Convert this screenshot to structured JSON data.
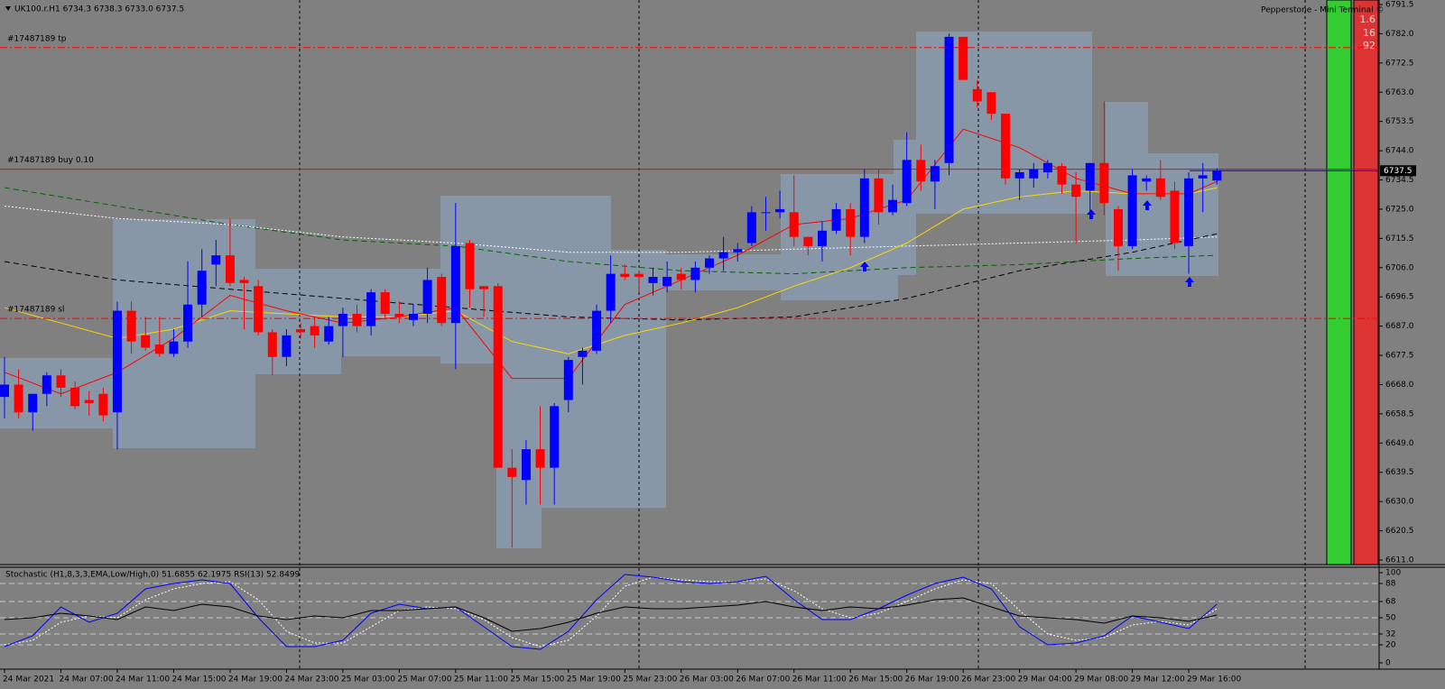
{
  "chart_data": [
    {
      "type": "candlestick",
      "title": "UK100.r.H1  6734.3 6738.3 6733.0 6737.5",
      "annotation": "Pepperstone - Mini Terminal ©",
      "counters": [
        "1.6",
        "16",
        "92"
      ],
      "categories": [
        "24 Mar 2021",
        null,
        null,
        null,
        "24 Mar 07:00",
        null,
        null,
        null,
        "24 Mar 11:00",
        null,
        null,
        null,
        "24 Mar 15:00",
        null,
        null,
        null,
        "24 Mar 19:00",
        null,
        null,
        null,
        "24 Mar 23:00",
        null,
        null,
        null,
        "25 Mar 03:00",
        null,
        null,
        null,
        "25 Mar 07:00",
        null,
        null,
        null,
        "25 Mar 11:00",
        null,
        null,
        null,
        "25 Mar 15:00",
        null,
        null,
        null,
        "25 Mar 19:00",
        null,
        null,
        null,
        "25 Mar 23:00",
        null,
        null,
        null,
        "26 Mar 03:00",
        null,
        null,
        null,
        "26 Mar 07:00",
        null,
        null,
        null,
        "26 Mar 11:00",
        null,
        null,
        null,
        "26 Mar 15:00",
        null,
        null,
        null,
        "26 Mar 19:00",
        null,
        null,
        null,
        "26 Mar 23:00",
        null,
        null,
        null,
        "29 Mar 04:00",
        null,
        null,
        null,
        "29 Mar 08:00",
        null,
        null,
        null,
        "29 Mar 12:00",
        null,
        null,
        null,
        "29 Mar 16:00",
        null,
        null
      ],
      "open": [
        6664,
        6668,
        6659,
        6665,
        6671,
        6667,
        6663,
        6665,
        6659,
        6692,
        6684,
        6681,
        6678,
        6682,
        6694,
        6707,
        6710,
        6702,
        6700,
        6685,
        6677,
        6686,
        6687,
        6682,
        6687,
        6691,
        6687,
        6698,
        6691,
        6689,
        6691,
        6703,
        6688,
        6714,
        6700,
        6700,
        6641,
        6637,
        6647,
        6641,
        6663,
        6677,
        6679,
        6692,
        6704,
        6704,
        6701,
        6700,
        6704,
        6702,
        6706,
        6709,
        6711,
        6714,
        6724,
        6724,
        6724,
        6716,
        6713,
        6718,
        6725,
        6716,
        6735,
        6724,
        6727,
        6741,
        6734,
        6740,
        6781,
        6764,
        6763,
        6756,
        6735,
        6735,
        6737,
        6739,
        6733,
        6731,
        6740,
        6725,
        6713,
        6734,
        6735,
        6731,
        6713,
        6735,
        6734.3
      ],
      "high": [
        6677,
        6673,
        6665,
        6672,
        6673,
        6669,
        6666,
        6667,
        6695,
        6695,
        6690,
        6690,
        6686,
        6708,
        6712,
        6715,
        6722,
        6703,
        6702,
        6686,
        6686,
        6688,
        6690,
        6690,
        6693,
        6694,
        6699,
        6699,
        6695,
        6694,
        6706,
        6704,
        6727,
        6715,
        6700,
        6701,
        6647,
        6650,
        6661,
        6662,
        6677,
        6680,
        6694,
        6710,
        6707,
        6705,
        6706,
        6708,
        6706,
        6708,
        6710,
        6716,
        6714,
        6726,
        6729,
        6731,
        6736,
        6716,
        6721,
        6727,
        6727,
        6738,
        6738,
        6733,
        6750,
        6746,
        6741,
        6782,
        6781,
        6767,
        6763,
        6756,
        6738,
        6740,
        6741,
        6740,
        6737,
        6740,
        6760,
        6726,
        6738,
        6736,
        6741,
        6734,
        6737,
        6740,
        6738.3
      ],
      "low": [
        6657,
        6657,
        6653,
        6661,
        6664,
        6660,
        6658,
        6656,
        6647,
        6678,
        6679,
        6677,
        6677,
        6680,
        6690,
        6700,
        6700,
        6686,
        6684,
        6671,
        6674,
        6683,
        6680,
        6681,
        6677,
        6685,
        6684,
        6689,
        6688,
        6687,
        6688,
        6687,
        6673,
        6693,
        6690,
        6641,
        6615,
        6629,
        6629,
        6629,
        6659,
        6668,
        6678,
        6688,
        6702,
        6698,
        6697,
        6698,
        6699,
        6698,
        6704,
        6705,
        6708,
        6713,
        6718,
        6722,
        6713,
        6710,
        6708,
        6717,
        6710,
        6714,
        6720,
        6723,
        6726,
        6731,
        6725,
        6736,
        6767,
        6758,
        6754,
        6733,
        6728,
        6732,
        6735,
        6730,
        6714,
        6723,
        6723,
        6705,
        6712,
        6731,
        6728,
        6712,
        6704,
        6724,
        6733.0
      ],
      "close": [
        6668,
        6659,
        6665,
        6671,
        6667,
        6661,
        6662,
        6658,
        6692,
        6682,
        6680,
        6678,
        6682,
        6694,
        6705,
        6710,
        6701,
        6701,
        6685,
        6677,
        6684,
        6685,
        6684,
        6687,
        6691,
        6687,
        6698,
        6691,
        6690,
        6691,
        6702,
        6688,
        6713,
        6699,
        6699,
        6641,
        6638,
        6647,
        6641,
        6661,
        6676,
        6679,
        6692,
        6704,
        6703,
        6703,
        6703,
        6703,
        6702,
        6706,
        6709,
        6711,
        6712,
        6724,
        6724,
        6725,
        6716,
        6713,
        6718,
        6725,
        6716,
        6735,
        6724,
        6728,
        6741,
        6734,
        6739,
        6781,
        6767,
        6760,
        6756,
        6735,
        6737,
        6738,
        6740,
        6733,
        6729,
        6740,
        6727,
        6713,
        6736,
        6735,
        6729,
        6714,
        6735,
        6736,
        6737.5
      ],
      "up_color": "#0000ff",
      "down_color": "#ff0000",
      "ylim": [
        6611.0,
        6791.5
      ],
      "yticks": [
        6791.5,
        {
          "value": 6782,
          "label": "6782.0"
        },
        6772.5,
        {
          "value": 6763,
          "label": "6763.0"
        },
        6753.5,
        {
          "value": 6744,
          "label": "6744.0"
        },
        6734.5,
        {
          "value": 6725,
          "label": "6725.0"
        },
        6715.5,
        {
          "value": 6706,
          "label": "6706.0"
        },
        6696.5,
        {
          "value": 6687,
          "label": "6687.0"
        },
        6677.5,
        {
          "value": 6668,
          "label": "6668.0"
        },
        6658.5,
        {
          "value": 6649,
          "label": "6649.0"
        },
        6639.5,
        {
          "value": 6630,
          "label": "6630.0"
        },
        6620.5,
        {
          "value": 6611,
          "label": "6611.0"
        }
      ],
      "levels": [
        {
          "label": "#17487189 tp",
          "value": 6777.5,
          "color": "#ff0000",
          "style": "dashdot"
        },
        {
          "label": "#17487189 buy 0.10",
          "value": 6738,
          "color": "#ff0000",
          "style": "solid"
        },
        {
          "label": "#17487189 sl",
          "value": 6689.5,
          "color": "#ff0000",
          "style": "dashdot"
        }
      ],
      "overlays": [
        {
          "color": "#006400",
          "style": "dashed",
          "x": [
            0,
            8,
            16,
            24,
            32,
            40,
            48,
            56,
            64,
            72,
            80,
            86
          ],
          "values": [
            6732,
            6726,
            6720,
            6715,
            6713,
            6708,
            6705,
            6704,
            6706,
            6707,
            6709,
            6710
          ]
        },
        {
          "color": "#ffffff",
          "style": "dotted",
          "x": [
            0,
            8,
            16,
            24,
            32,
            40,
            48,
            56,
            64,
            72,
            80,
            86
          ],
          "values": [
            6726,
            6722,
            6720,
            6716,
            6714,
            6711,
            6711,
            6712,
            6713,
            6714,
            6715,
            6716
          ]
        },
        {
          "color": "#000000",
          "style": "dashed",
          "x": [
            0,
            8,
            16,
            24,
            32,
            40,
            48,
            56,
            64,
            72,
            80,
            86
          ],
          "values": [
            6708,
            6702,
            6699,
            6696,
            6693,
            6690,
            6689,
            6690,
            6696,
            6705,
            6711,
            6717
          ]
        },
        {
          "color": "#ffd700",
          "style": "solid",
          "x": [
            0,
            4,
            8,
            12,
            16,
            20,
            24,
            28,
            32,
            36,
            40,
            44,
            48,
            52,
            56,
            60,
            64,
            68,
            72,
            76,
            80,
            84,
            86
          ],
          "values": [
            6693,
            6688,
            6683,
            6686,
            6692,
            6691,
            6690,
            6690,
            6692,
            6682,
            6678,
            6684,
            6688,
            6693,
            6700,
            6706,
            6714,
            6725,
            6729,
            6731,
            6730,
            6730,
            6732
          ]
        },
        {
          "color": "#ff0000",
          "style": "solid",
          "x": [
            0,
            4,
            8,
            12,
            16,
            20,
            24,
            28,
            32,
            36,
            40,
            44,
            48,
            52,
            56,
            60,
            64,
            68,
            72,
            76,
            80,
            84,
            86
          ],
          "values": [
            6672,
            6665,
            6672,
            6683,
            6697,
            6692,
            6688,
            6690,
            6693,
            6670,
            6670,
            6694,
            6702,
            6710,
            6720,
            6722,
            6728,
            6751,
            6745,
            6735,
            6730,
            6730,
            6734
          ]
        }
      ]
    },
    {
      "type": "line",
      "title": "Stochastic (H1,8,3,3,EMA,Low/High,0) 51.6855 62.1975  RSI(13) 52.8499",
      "ylim": [
        0,
        100
      ],
      "yticks": [
        0,
        20,
        32,
        50,
        68,
        88,
        100
      ],
      "grid": true,
      "x": [
        0,
        2,
        4,
        6,
        8,
        10,
        12,
        14,
        16,
        18,
        20,
        22,
        24,
        26,
        28,
        30,
        32,
        34,
        36,
        38,
        40,
        42,
        44,
        46,
        48,
        50,
        52,
        54,
        56,
        58,
        60,
        62,
        64,
        66,
        68,
        70,
        72,
        74,
        76,
        78,
        80,
        82,
        84,
        86
      ],
      "series": [
        {
          "color": "#ffffff",
          "style": "dotted",
          "values": [
            20,
            25,
            45,
            52,
            50,
            70,
            82,
            88,
            90,
            70,
            35,
            22,
            22,
            40,
            58,
            62,
            60,
            48,
            28,
            18,
            25,
            52,
            85,
            95,
            92,
            90,
            90,
            93,
            80,
            60,
            50,
            55,
            68,
            82,
            92,
            88,
            58,
            32,
            25,
            28,
            42,
            46,
            42,
            60
          ]
        },
        {
          "color": "#0000ff",
          "style": "solid",
          "values": [
            18,
            30,
            62,
            45,
            55,
            82,
            88,
            92,
            88,
            50,
            18,
            18,
            25,
            55,
            65,
            60,
            62,
            40,
            18,
            15,
            35,
            70,
            98,
            95,
            90,
            88,
            90,
            96,
            70,
            48,
            48,
            60,
            75,
            88,
            95,
            82,
            40,
            20,
            22,
            30,
            52,
            45,
            38,
            65
          ]
        },
        {
          "color": "#000000",
          "style": "solid",
          "values": [
            48,
            50,
            55,
            52,
            48,
            62,
            58,
            65,
            62,
            52,
            48,
            52,
            50,
            58,
            58,
            60,
            62,
            50,
            35,
            38,
            45,
            55,
            62,
            60,
            60,
            62,
            64,
            68,
            62,
            58,
            62,
            60,
            64,
            70,
            72,
            62,
            52,
            50,
            48,
            44,
            52,
            50,
            46,
            53
          ]
        }
      ]
    }
  ]
}
